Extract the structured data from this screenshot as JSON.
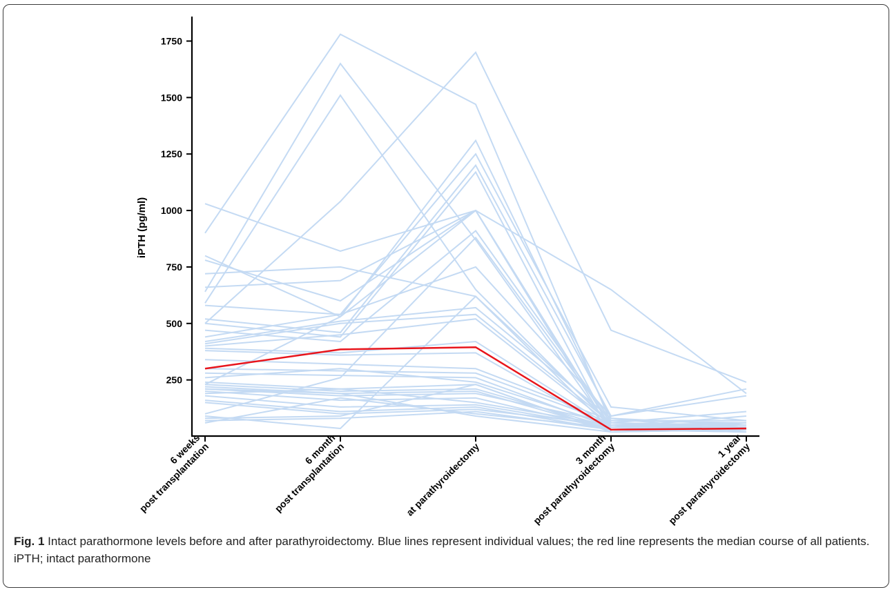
{
  "caption": {
    "label": "Fig. 1",
    "text": "Intact parathormone levels before and after parathyroidectomy. Blue lines represent individual values; the red line represents the median course of all patients. iPTH; intact parathormone"
  },
  "colors": {
    "individual": "#c4daf3",
    "median": "#e8141b",
    "axis": "#000000"
  },
  "chart_data": {
    "type": "line",
    "title": "",
    "xlabel": "",
    "ylabel": "iPTH (pg/ml)",
    "ylim": [
      0,
      1850
    ],
    "yticks": [
      250,
      500,
      750,
      1000,
      1250,
      1500,
      1750
    ],
    "ytick_labels": [
      "250",
      "500",
      "750",
      "1000",
      "1250",
      "1500",
      "1750"
    ],
    "categories": [
      [
        "6 weeks",
        "post transplantation"
      ],
      [
        "6 month",
        "post transplantation"
      ],
      [
        "at parathyroidectomy"
      ],
      [
        "3 month",
        "post parathyroidectomy"
      ],
      [
        "1 year",
        "post parathyroidectomy"
      ]
    ],
    "median": {
      "name": "Median",
      "values": [
        300,
        385,
        395,
        30,
        35
      ]
    },
    "series": [
      {
        "values": [
          900,
          1780,
          1470,
          60,
          40
        ]
      },
      {
        "values": [
          1030,
          820,
          1000,
          40,
          30
        ]
      },
      {
        "values": [
          640,
          1650,
          870,
          30,
          20
        ]
      },
      {
        "values": [
          590,
          1510,
          650,
          50,
          30
        ]
      },
      {
        "values": [
          500,
          1040,
          1700,
          470,
          240
        ]
      },
      {
        "values": [
          800,
          530,
          1310,
          80,
          50
        ]
      },
      {
        "values": [
          780,
          600,
          1000,
          20,
          40
        ]
      },
      {
        "values": [
          720,
          750,
          620,
          60,
          30
        ]
      },
      {
        "values": [
          660,
          690,
          1000,
          40,
          60
        ]
      },
      {
        "values": [
          580,
          540,
          1250,
          130,
          70
        ]
      },
      {
        "values": [
          520,
          460,
          1200,
          90,
          180
        ]
      },
      {
        "values": [
          500,
          440,
          1170,
          30,
          40
        ]
      },
      {
        "values": [
          470,
          420,
          910,
          70,
          60
        ]
      },
      {
        "values": [
          440,
          540,
          750,
          90,
          210
        ]
      },
      {
        "values": [
          420,
          510,
          570,
          80,
          20
        ]
      },
      {
        "values": [
          410,
          500,
          540,
          60,
          50
        ]
      },
      {
        "values": [
          400,
          450,
          520,
          50,
          40
        ]
      },
      {
        "values": [
          390,
          370,
          420,
          40,
          30
        ]
      },
      {
        "values": [
          380,
          360,
          370,
          30,
          20
        ]
      },
      {
        "values": [
          340,
          320,
          300,
          70,
          70
        ]
      },
      {
        "values": [
          300,
          290,
          280,
          60,
          110
        ]
      },
      {
        "values": [
          280,
          270,
          260,
          40,
          90
        ]
      },
      {
        "values": [
          260,
          300,
          240,
          50,
          40
        ]
      },
      {
        "values": [
          240,
          210,
          230,
          20,
          30
        ]
      },
      {
        "values": [
          230,
          200,
          210,
          40,
          60
        ]
      },
      {
        "values": [
          220,
          190,
          200,
          30,
          50
        ]
      },
      {
        "values": [
          210,
          180,
          190,
          60,
          40
        ]
      },
      {
        "values": [
          200,
          160,
          170,
          30,
          30
        ]
      },
      {
        "values": [
          190,
          210,
          150,
          50,
          60
        ]
      },
      {
        "values": [
          180,
          130,
          140,
          40,
          50
        ]
      },
      {
        "values": [
          160,
          110,
          130,
          30,
          40
        ]
      },
      {
        "values": [
          150,
          100,
          120,
          50,
          60
        ]
      },
      {
        "values": [
          100,
          260,
          880,
          60,
          40
        ]
      },
      {
        "values": [
          90,
          35,
          620,
          30,
          20
        ]
      },
      {
        "values": [
          80,
          90,
          230,
          20,
          30
        ]
      },
      {
        "values": [
          70,
          80,
          110,
          30,
          50
        ]
      },
      {
        "values": [
          60,
          170,
          100,
          40,
          60
        ]
      },
      {
        "values": [
          210,
          190,
          90,
          20,
          30
        ]
      },
      {
        "values": [
          230,
          530,
          1000,
          650,
          190
        ]
      }
    ]
  }
}
